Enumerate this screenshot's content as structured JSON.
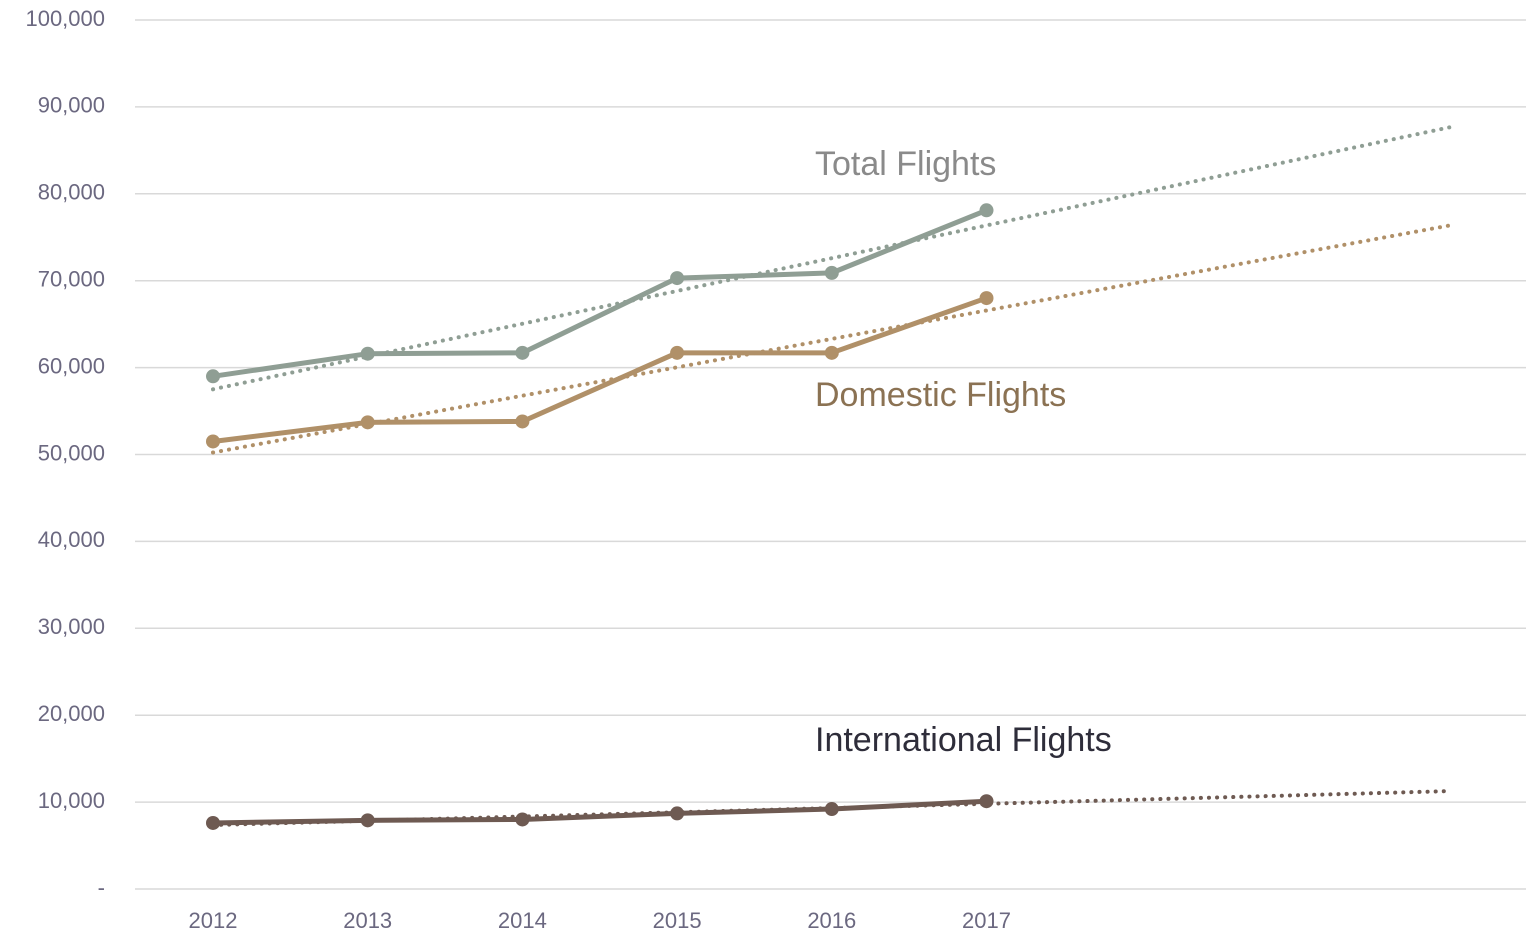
{
  "chart_data": {
    "type": "line",
    "categories": [
      "2012",
      "2013",
      "2014",
      "2015",
      "2016",
      "2017",
      null,
      null,
      null
    ],
    "series": [
      {
        "name": "Total Flights",
        "color": "#8f9e94",
        "label_color": "#8a8a8a",
        "values": [
          59000,
          61600,
          61700,
          70300,
          70900,
          78100,
          null,
          null,
          null
        ]
      },
      {
        "name": "Domestic Flights",
        "color": "#b09068",
        "label_color": "#8b7253",
        "values": [
          51500,
          53700,
          53800,
          61700,
          61700,
          68000,
          null,
          null,
          null
        ]
      },
      {
        "name": "International Flights",
        "color": "#6e5a52",
        "label_color": "#2e2d3a",
        "values": [
          7600,
          7900,
          8000,
          8700,
          9200,
          10100,
          null,
          null,
          null
        ]
      }
    ],
    "trendline": true,
    "ylim": [
      0,
      100000
    ],
    "yticks": [
      {
        "value": 0,
        "label": "-"
      },
      {
        "value": 10000,
        "label": "10,000"
      },
      {
        "value": 20000,
        "label": "20,000"
      },
      {
        "value": 30000,
        "label": "30,000"
      },
      {
        "value": 40000,
        "label": "40,000"
      },
      {
        "value": 50000,
        "label": "50,000"
      },
      {
        "value": 60000,
        "label": "60,000"
      },
      {
        "value": 70000,
        "label": "70,000"
      },
      {
        "value": 80000,
        "label": "80,000"
      },
      {
        "value": 90000,
        "label": "90,000"
      },
      {
        "value": 100000,
        "label": "100,000"
      }
    ],
    "grid": true
  }
}
